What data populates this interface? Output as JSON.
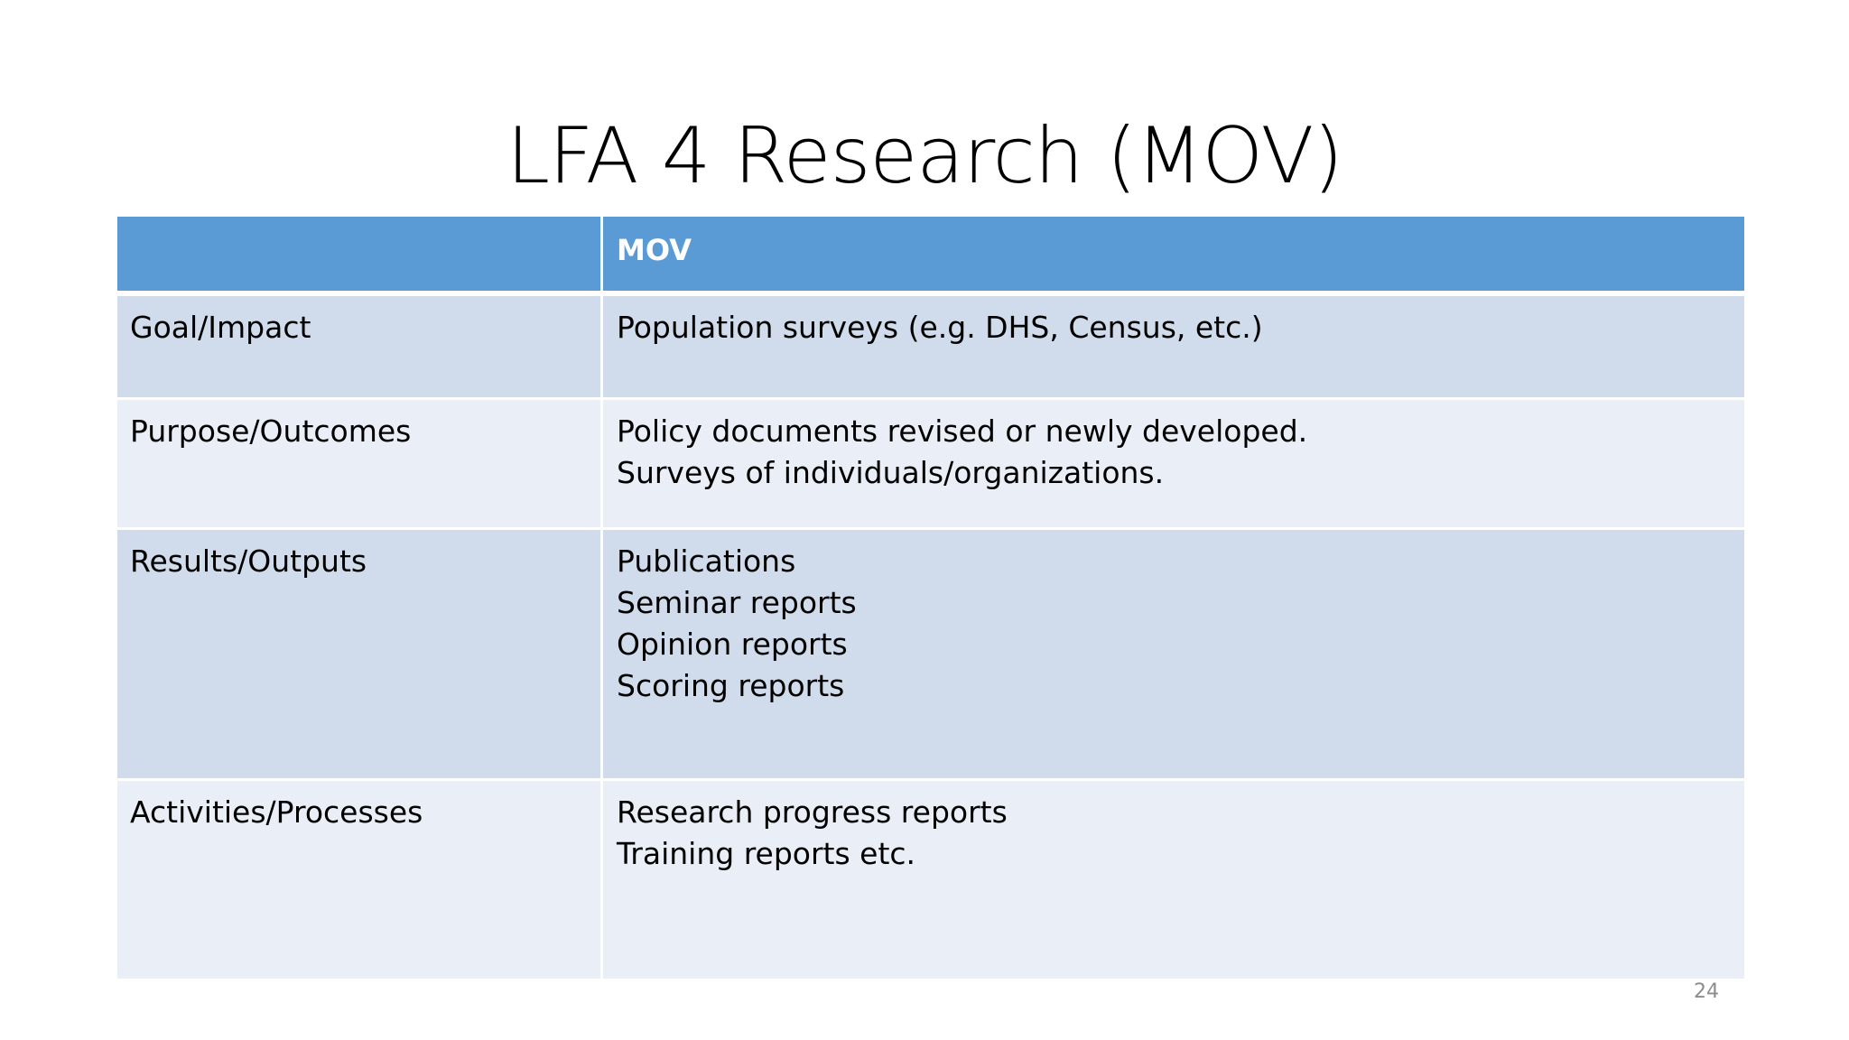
{
  "slide": {
    "title": "LFA 4 Research (MOV)",
    "page_number": "24"
  },
  "table": {
    "header": [
      "",
      "MOV"
    ],
    "rows": [
      {
        "label": "Goal/Impact",
        "lines": [
          "Population surveys (e.g. DHS, Census, etc.)"
        ]
      },
      {
        "label": "Purpose/Outcomes",
        "lines": [
          "Policy documents revised or newly developed.",
          "Surveys of individuals/organizations."
        ]
      },
      {
        "label": "Results/Outputs",
        "lines": [
          "Publications",
          "Seminar reports",
          "Opinion reports",
          "Scoring reports"
        ]
      },
      {
        "label": "Activities/Processes",
        "lines": [
          "Research progress reports",
          "Training reports etc."
        ]
      }
    ]
  },
  "colors": {
    "header_bg": "#5b9bd5",
    "row_dark": "#d0dcec",
    "row_light": "#e9eef7"
  }
}
